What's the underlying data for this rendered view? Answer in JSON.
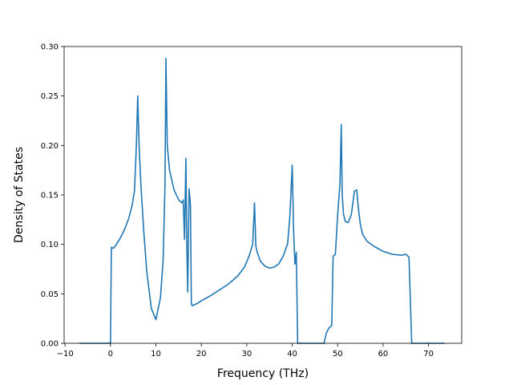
{
  "chart_data": {
    "type": "line",
    "title": "",
    "xlabel": "Frequency (THz)",
    "ylabel": "Density of States",
    "xlim": [
      -10.2,
      77.3
    ],
    "ylim": [
      0.0,
      0.3
    ],
    "xticks": [
      -10,
      0,
      10,
      20,
      30,
      40,
      50,
      60,
      70
    ],
    "xtick_labels": [
      "−10",
      "0",
      "10",
      "20",
      "30",
      "40",
      "50",
      "60",
      "70"
    ],
    "yticks": [
      0.0,
      0.05,
      0.1,
      0.15,
      0.2,
      0.25,
      0.3
    ],
    "ytick_labels": [
      "0.00",
      "0.05",
      "0.10",
      "0.15",
      "0.20",
      "0.25",
      "0.30"
    ],
    "grid": false,
    "series": [
      {
        "color": "#1f77b4",
        "x": [
          -6.8,
          -0.4,
          0.0,
          0.2,
          0.6,
          1.0,
          2.0,
          3.0,
          4.0,
          4.8,
          5.3,
          5.7,
          6.0,
          6.3,
          6.7,
          7.3,
          8.0,
          9.0,
          10.0,
          11.0,
          11.6,
          12.0,
          12.2,
          12.5,
          13.0,
          14.0,
          15.0,
          15.7,
          16.0,
          16.3,
          16.6,
          16.8,
          17.0,
          17.3,
          17.6,
          17.8,
          18.0,
          19.0,
          20.0,
          22.0,
          24.0,
          26.0,
          28.0,
          29.5,
          30.5,
          31.3,
          31.7,
          32.0,
          32.3,
          33.0,
          34.0,
          35.0,
          36.0,
          37.0,
          38.0,
          39.0,
          39.5,
          40.0,
          40.3,
          40.6,
          40.9,
          41.2,
          41.4,
          41.7,
          42.0,
          47.0,
          47.5,
          48.0,
          48.7,
          49.0,
          49.5,
          50.0,
          50.5,
          50.8,
          51.0,
          51.3,
          51.7,
          52.3,
          53.0,
          53.7,
          54.2,
          54.6,
          55.0,
          55.5,
          56.5,
          58.0,
          60.0,
          62.0,
          64.0,
          65.0,
          65.7,
          66.3,
          67.0,
          67.2,
          67.5,
          73.5
        ],
        "y": [
          0.0,
          0.0,
          0.0,
          0.097,
          0.096,
          0.098,
          0.105,
          0.114,
          0.126,
          0.14,
          0.155,
          0.2,
          0.25,
          0.2,
          0.16,
          0.115,
          0.072,
          0.035,
          0.024,
          0.046,
          0.085,
          0.16,
          0.288,
          0.2,
          0.175,
          0.155,
          0.145,
          0.142,
          0.145,
          0.105,
          0.187,
          0.1,
          0.052,
          0.156,
          0.14,
          0.04,
          0.038,
          0.04,
          0.043,
          0.048,
          0.054,
          0.06,
          0.068,
          0.077,
          0.088,
          0.1,
          0.142,
          0.098,
          0.092,
          0.083,
          0.078,
          0.076,
          0.077,
          0.08,
          0.088,
          0.101,
          0.13,
          0.18,
          0.115,
          0.08,
          0.092,
          0.0,
          0.0,
          0.0,
          0.0,
          0.0,
          0.01,
          0.015,
          0.018,
          0.088,
          0.09,
          0.13,
          0.16,
          0.221,
          0.15,
          0.13,
          0.123,
          0.122,
          0.13,
          0.154,
          0.155,
          0.135,
          0.12,
          0.11,
          0.103,
          0.098,
          0.093,
          0.09,
          0.089,
          0.09,
          0.087,
          0.0,
          0.0,
          0.0,
          0.0,
          0.0
        ]
      }
    ]
  }
}
